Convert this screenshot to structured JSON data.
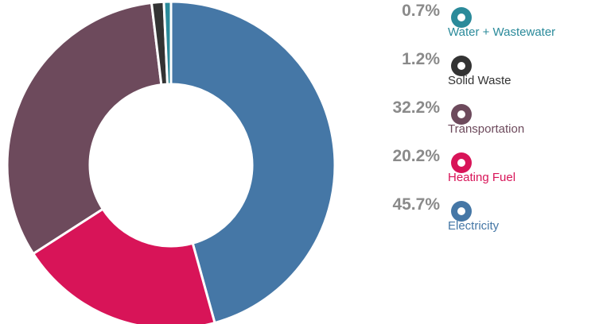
{
  "chart_data": {
    "type": "pie",
    "categories": [
      "Electricity",
      "Heating Fuel",
      "Transportation",
      "Solid Waste",
      "Water + Wastewater"
    ],
    "values": [
      45.7,
      20.2,
      32.2,
      1.2,
      0.7
    ],
    "value_labels": [
      "45.7%",
      "20.2%",
      "32.2%",
      "1.2%",
      "0.7%"
    ],
    "colors": [
      "#4577a6",
      "#d81458",
      "#6d4a5c",
      "#333333",
      "#2a8a9a"
    ]
  }
}
